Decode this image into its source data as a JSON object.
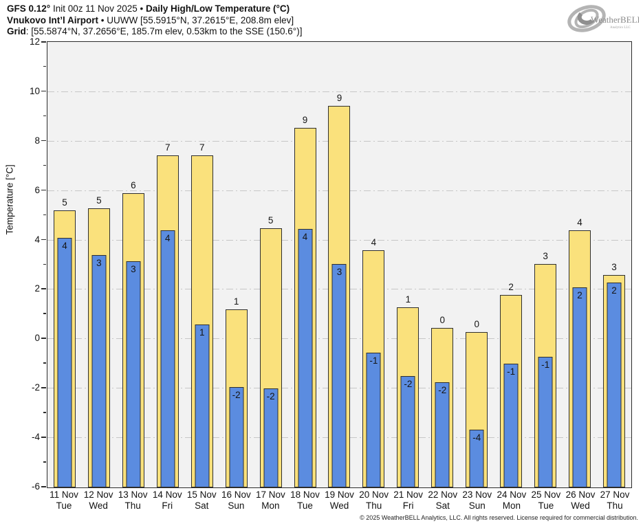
{
  "header": {
    "line1_bold1": "GFS 0.12°",
    "line1_regular": " Init 00z 11 Nov 2025 • ",
    "line1_bold2": "Daily High/Low Temperature (°C)",
    "line2_bold": "Vnukovo Int’l Airport",
    "line2_regular": " • UUWW [55.5915°N, 37.2615°E, 208.8m elev]",
    "line3_bold": "Grid",
    "line3_regular": ": [55.5874°N, 37.2656°E, 185.7m elev, 0.53km to the SSE (150.6°)]"
  },
  "logo": {
    "text_main": "WeatherBELL",
    "text_sub": "Analytics LLC"
  },
  "chart_data": {
    "type": "bar",
    "title": "Daily High/Low Temperature (°C)",
    "ylabel": "Temperature [°C]",
    "ylim": [
      -6,
      12
    ],
    "yticks_major": [
      12,
      10,
      8,
      6,
      4,
      2,
      0,
      -2,
      -4,
      -6
    ],
    "yticks_minor": [
      11,
      9,
      7,
      5,
      3,
      1,
      -1,
      -3,
      -5
    ],
    "gridline_values": [
      10,
      8,
      6,
      4,
      2,
      0,
      -2,
      -4
    ],
    "grid": true,
    "legend_position": "none",
    "categories": [
      "11 Nov",
      "12 Nov",
      "13 Nov",
      "14 Nov",
      "15 Nov",
      "16 Nov",
      "17 Nov",
      "18 Nov",
      "19 Nov",
      "20 Nov",
      "21 Nov",
      "22 Nov",
      "23 Nov",
      "24 Nov",
      "25 Nov",
      "26 Nov",
      "27 Nov"
    ],
    "weekdays": [
      "Tue",
      "Wed",
      "Thu",
      "Fri",
      "Sat",
      "Sun",
      "Mon",
      "Tue",
      "Wed",
      "Thu",
      "Fri",
      "Sat",
      "Sun",
      "Mon",
      "Tue",
      "Wed",
      "Thu"
    ],
    "series": [
      {
        "name": "Daily High",
        "color": "#fae17c",
        "values": [
          5.2,
          5.3,
          5.9,
          7.45,
          7.45,
          1.2,
          4.5,
          8.55,
          9.45,
          3.6,
          1.3,
          0.45,
          0.3,
          1.8,
          3.05,
          4.4,
          2.6
        ],
        "labels": [
          "5",
          "5",
          "6",
          "7",
          "7",
          "1",
          "5",
          "9",
          "9",
          "4",
          "1",
          "0",
          "0",
          "2",
          "3",
          "4",
          "3"
        ]
      },
      {
        "name": "Daily Low",
        "color": "#5b8ce0",
        "values": [
          4.1,
          3.4,
          3.15,
          4.4,
          0.6,
          -1.95,
          -2.0,
          4.45,
          3.05,
          -0.55,
          -1.5,
          -1.75,
          -3.65,
          -1.0,
          -0.7,
          2.1,
          2.3
        ],
        "labels": [
          "4",
          "3",
          "3",
          "4",
          "1",
          "-2",
          "-2",
          "4",
          "3",
          "-1",
          "-2",
          "-2",
          "-4",
          "-1",
          "-1",
          "2",
          "2"
        ]
      }
    ]
  },
  "footer": {
    "copyright": "© 2025 WeatherBELL Analytics, LLC. All rights reserved. License required for commercial distribution."
  }
}
